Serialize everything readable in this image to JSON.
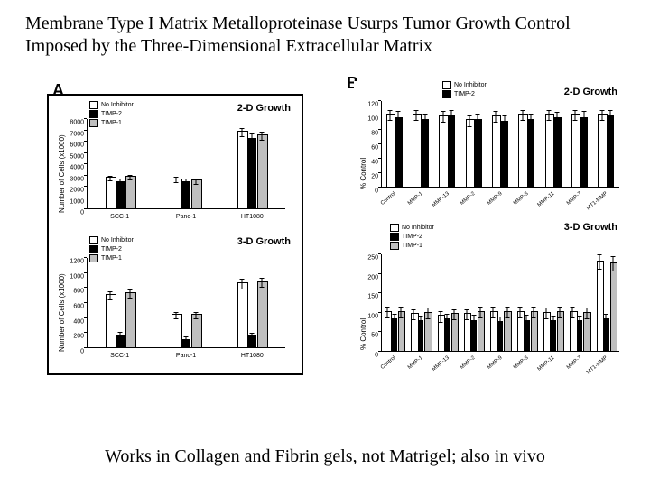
{
  "title": "Membrane Type I Matrix Metalloproteinase Usurps Tumor Growth Control Imposed by the Three-Dimensional Extracellular Matrix",
  "footer": "Works in Collagen and Fibrin gels, not Matrigel; also in vivo",
  "panelA": {
    "label": "A",
    "legend": [
      "No Inhibitor",
      "TIMP-2",
      "TIMP-1"
    ],
    "top": {
      "subtitle": "2-D Growth",
      "ylabel": "Number of Cells (x1000)",
      "ylim": [
        0,
        8000
      ],
      "ystep": 1000,
      "categories": [
        "SCC-1",
        "Panc-1",
        "HT1080"
      ],
      "series_colors": [
        "#ffffff",
        "#000000",
        "#bfbfbf"
      ],
      "data": [
        [
          2700,
          2500,
          2800
        ],
        [
          2600,
          2500,
          2450
        ],
        [
          6800,
          6300,
          6450
        ]
      ],
      "err": [
        [
          250,
          250,
          250
        ],
        [
          250,
          250,
          250
        ],
        [
          400,
          400,
          400
        ]
      ]
    },
    "bot": {
      "subtitle": "3-D Growth",
      "ylabel": "Number of Cells (x1000)",
      "ylim": [
        0,
        1200
      ],
      "ystep": 200,
      "categories": [
        "SCC-1",
        "Panc-1",
        "HT1080"
      ],
      "series_colors": [
        "#ffffff",
        "#000000",
        "#bfbfbf"
      ],
      "data": [
        [
          700,
          180,
          720
        ],
        [
          430,
          120,
          430
        ],
        [
          850,
          170,
          870
        ]
      ],
      "err": [
        [
          60,
          40,
          60
        ],
        [
          50,
          40,
          50
        ],
        [
          70,
          40,
          70
        ]
      ]
    }
  },
  "panelB": {
    "label": "B",
    "top": {
      "subtitle": "2-D Growth",
      "ylabel": "% Control",
      "legend": [
        "No Inhibitor",
        "TIMP-2"
      ],
      "ylim": [
        0,
        120
      ],
      "ystep": 20,
      "categories": [
        "Control",
        "MMP-1",
        "MMP-13",
        "MMP-2",
        "MMP-9",
        "MMP-3",
        "MMP-11",
        "MMP-7",
        "MT1-MMP"
      ],
      "series_colors": [
        "#ffffff",
        "#000000"
      ],
      "data": [
        [
          100,
          98
        ],
        [
          100,
          95
        ],
        [
          98,
          100
        ],
        [
          92,
          95
        ],
        [
          98,
          92
        ],
        [
          100,
          95
        ],
        [
          100,
          97
        ],
        [
          100,
          98
        ],
        [
          100,
          100
        ]
      ],
      "err": [
        [
          8,
          8
        ],
        [
          8,
          8
        ],
        [
          8,
          8
        ],
        [
          8,
          8
        ],
        [
          8,
          8
        ],
        [
          8,
          8
        ],
        [
          8,
          8
        ],
        [
          8,
          8
        ],
        [
          8,
          8
        ]
      ]
    },
    "bot": {
      "subtitle": "3-D Growth",
      "ylabel": "% Control",
      "legend": [
        "No Inhibitor",
        "TIMP-2",
        "TIMP-1"
      ],
      "ylim": [
        0,
        250
      ],
      "ystep": 50,
      "categories": [
        "Control",
        "MMP-1",
        "MMP-13",
        "MMP-2",
        "MMP-9",
        "MMP-3",
        "MMP-11",
        "MMP-7",
        "MT1-MMP"
      ],
      "series_colors": [
        "#ffffff",
        "#000000",
        "#bfbfbf"
      ],
      "data": [
        [
          100,
          85,
          100
        ],
        [
          95,
          80,
          98
        ],
        [
          90,
          85,
          95
        ],
        [
          95,
          82,
          100
        ],
        [
          100,
          78,
          100
        ],
        [
          100,
          82,
          100
        ],
        [
          98,
          80,
          100
        ],
        [
          100,
          80,
          98
        ],
        [
          230,
          85,
          225
        ]
      ],
      "err": [
        [
          15,
          12,
          15
        ],
        [
          15,
          12,
          15
        ],
        [
          15,
          12,
          15
        ],
        [
          15,
          12,
          15
        ],
        [
          15,
          12,
          15
        ],
        [
          15,
          12,
          15
        ],
        [
          15,
          12,
          15
        ],
        [
          15,
          12,
          15
        ],
        [
          20,
          12,
          20
        ]
      ]
    }
  }
}
